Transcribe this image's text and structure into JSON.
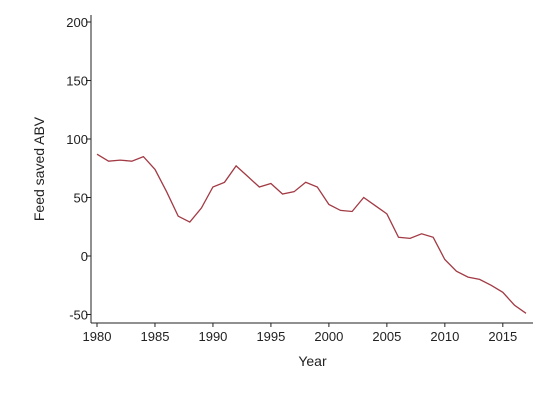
{
  "chart_data": {
    "type": "line",
    "title": "",
    "xlabel": "Year",
    "ylabel": "Feed saved ABV",
    "xlim": [
      1980,
      2017
    ],
    "ylim": [
      -55,
      200
    ],
    "xticks": [
      1980,
      1985,
      1990,
      1995,
      2000,
      2005,
      2010,
      2015
    ],
    "yticks": [
      -50,
      0,
      50,
      100,
      150,
      200
    ],
    "grid": false,
    "legend": "none",
    "line_color": "#a23a44",
    "series": [
      {
        "x": [
          1980,
          1981,
          1982,
          1983,
          1984,
          1985,
          1986,
          1987,
          1988,
          1989,
          1990,
          1991,
          1992,
          1993,
          1994,
          1995,
          1996,
          1997,
          1998,
          1999,
          2000,
          2001,
          2002,
          2003,
          2004,
          2005,
          2006,
          2007,
          2008,
          2009,
          2010,
          2011,
          2012,
          2013,
          2014,
          2015,
          2016,
          2017
        ],
        "values": [
          87,
          81,
          82,
          81,
          85,
          74,
          55,
          34,
          29,
          41,
          59,
          63,
          77,
          68,
          59,
          62,
          53,
          55,
          63,
          59,
          44,
          39,
          38,
          50,
          43,
          36,
          16,
          15,
          19,
          16,
          -3,
          -13,
          -18,
          -20,
          -25,
          -31,
          -42,
          -49
        ]
      }
    ]
  }
}
